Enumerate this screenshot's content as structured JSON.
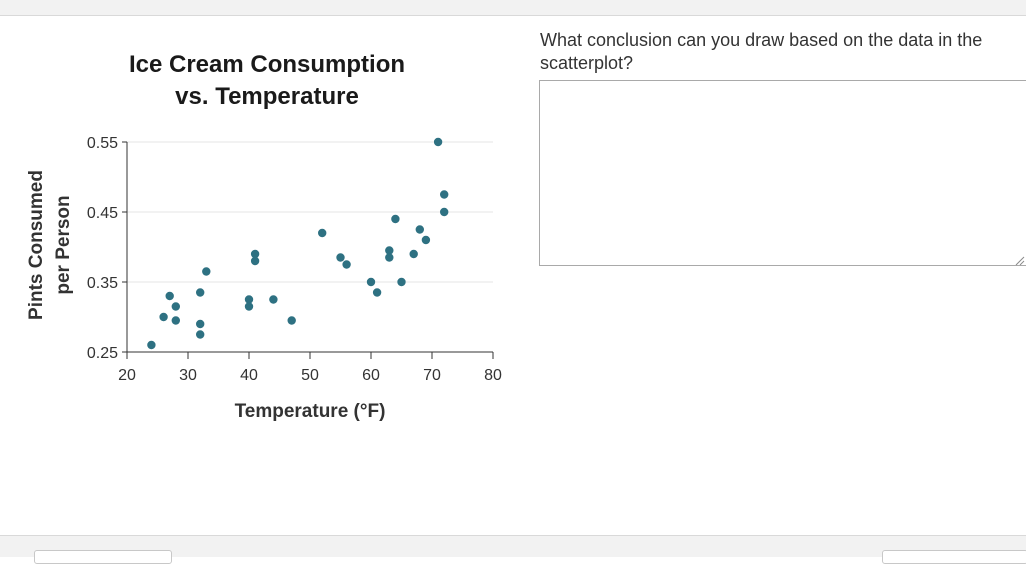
{
  "chart_data": {
    "type": "scatter",
    "title_lines": [
      "Ice Cream Consumption",
      "vs. Temperature"
    ],
    "xlabel": "Temperature (°F)",
    "ylabel_lines": [
      "Pints Consumed",
      "per Person"
    ],
    "xlim": [
      20,
      80
    ],
    "ylim": [
      0.25,
      0.55
    ],
    "x_ticks": [
      20,
      30,
      40,
      50,
      60,
      70,
      80
    ],
    "x_tick_labels": [
      "20",
      "30",
      "40",
      "50",
      "60",
      "70",
      "80"
    ],
    "y_ticks": [
      0.25,
      0.35,
      0.45,
      0.55
    ],
    "y_tick_labels": [
      "0.25",
      "0.35",
      "0.45",
      "0.55"
    ],
    "grid": true,
    "marker_color": "#2e7182",
    "points": [
      {
        "x": 24,
        "y": 0.26
      },
      {
        "x": 26,
        "y": 0.3
      },
      {
        "x": 27,
        "y": 0.33
      },
      {
        "x": 28,
        "y": 0.315
      },
      {
        "x": 28,
        "y": 0.295
      },
      {
        "x": 32,
        "y": 0.335
      },
      {
        "x": 32,
        "y": 0.29
      },
      {
        "x": 32,
        "y": 0.275
      },
      {
        "x": 33,
        "y": 0.365
      },
      {
        "x": 40,
        "y": 0.325
      },
      {
        "x": 40,
        "y": 0.315
      },
      {
        "x": 41,
        "y": 0.39
      },
      {
        "x": 41,
        "y": 0.38
      },
      {
        "x": 44,
        "y": 0.325
      },
      {
        "x": 47,
        "y": 0.295
      },
      {
        "x": 52,
        "y": 0.42
      },
      {
        "x": 55,
        "y": 0.385
      },
      {
        "x": 56,
        "y": 0.375
      },
      {
        "x": 60,
        "y": 0.35
      },
      {
        "x": 61,
        "y": 0.335
      },
      {
        "x": 63,
        "y": 0.395
      },
      {
        "x": 63,
        "y": 0.385
      },
      {
        "x": 64,
        "y": 0.44
      },
      {
        "x": 65,
        "y": 0.35
      },
      {
        "x": 67,
        "y": 0.39
      },
      {
        "x": 68,
        "y": 0.425
      },
      {
        "x": 69,
        "y": 0.41
      },
      {
        "x": 71,
        "y": 0.55
      },
      {
        "x": 72,
        "y": 0.475
      },
      {
        "x": 72,
        "y": 0.45
      }
    ]
  },
  "question": {
    "text": "What conclusion can you draw based on the data in the scatterplot?"
  },
  "answer": {
    "value": ""
  },
  "colors": {
    "marker": "#2e7182",
    "gridline": "#e6e6e6",
    "axis": "#333333"
  }
}
